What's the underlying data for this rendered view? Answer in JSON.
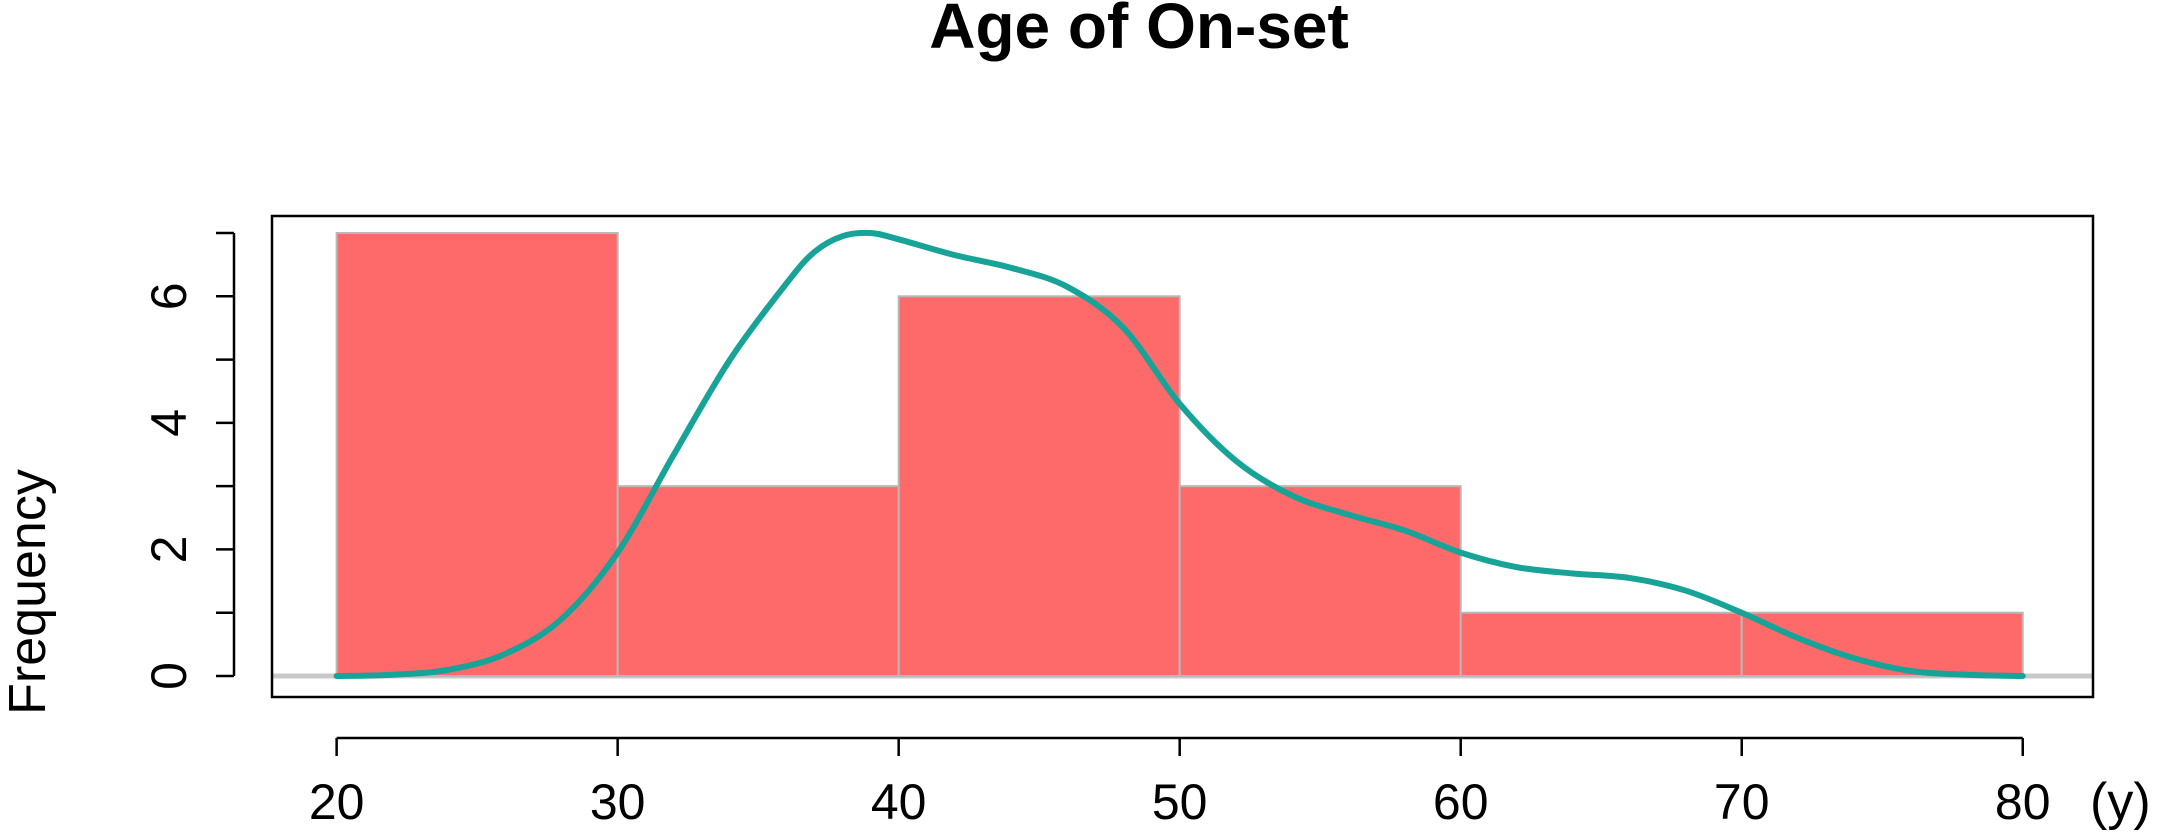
{
  "chart_data": {
    "type": "bar",
    "title": "Age of On-set",
    "xlabel": "(y)",
    "ylabel": "Frequency",
    "bins": [
      {
        "from": 20,
        "to": 30,
        "count": 7
      },
      {
        "from": 30,
        "to": 40,
        "count": 3
      },
      {
        "from": 40,
        "to": 50,
        "count": 6
      },
      {
        "from": 50,
        "to": 60,
        "count": 3
      },
      {
        "from": 60,
        "to": 70,
        "count": 1
      },
      {
        "from": 70,
        "to": 80,
        "count": 1
      }
    ],
    "x_ticks": [
      20,
      30,
      40,
      50,
      60,
      70,
      80
    ],
    "y_ticks": [
      0,
      2,
      4,
      6
    ],
    "xlim": [
      17.7,
      82.5
    ],
    "ylim": [
      0,
      7
    ],
    "density_curve": {
      "x": [
        20,
        22,
        24,
        26,
        28,
        30,
        32,
        34,
        36,
        37,
        38,
        39,
        40,
        42,
        44,
        46,
        48,
        50,
        52,
        54,
        56,
        58,
        60,
        62,
        64,
        66,
        68,
        70,
        72,
        74,
        76,
        78,
        80
      ],
      "y": [
        0,
        0.02,
        0.1,
        0.35,
        0.9,
        1.95,
        3.5,
        5.0,
        6.2,
        6.7,
        6.95,
        7.0,
        6.9,
        6.65,
        6.45,
        6.15,
        5.5,
        4.3,
        3.4,
        2.85,
        2.55,
        2.3,
        1.95,
        1.72,
        1.62,
        1.55,
        1.35,
        1.0,
        0.6,
        0.28,
        0.08,
        0.02,
        0
      ],
      "color": "#17a398"
    },
    "bar_color": "#fe6a6a",
    "bar_edge_color": "#b8b8b8",
    "grid": false
  }
}
